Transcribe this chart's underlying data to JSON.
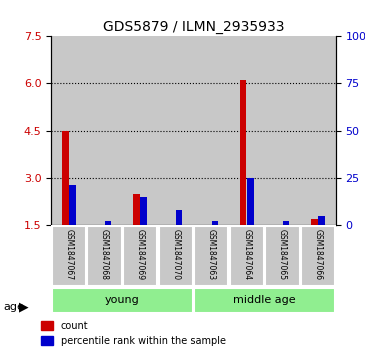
{
  "title": "GDS5879 / ILMN_2935933",
  "samples": [
    "GSM1847067",
    "GSM1847068",
    "GSM1847069",
    "GSM1847070",
    "GSM1847063",
    "GSM1847064",
    "GSM1847065",
    "GSM1847066"
  ],
  "red_values": [
    4.5,
    1.5,
    2.5,
    1.5,
    1.5,
    6.1,
    1.5,
    1.7
  ],
  "blue_values": [
    21,
    2,
    15,
    8,
    2,
    25,
    2,
    5
  ],
  "ylim_left": [
    1.5,
    7.5
  ],
  "ylim_right": [
    0,
    100
  ],
  "yticks_left": [
    1.5,
    3.0,
    4.5,
    6.0,
    7.5
  ],
  "yticks_right": [
    0,
    25,
    50,
    75,
    100
  ],
  "red_color": "#cc0000",
  "blue_color": "#0000cc",
  "bar_bg_color": "#c8c8c8",
  "group_bg_color": "#90EE90",
  "age_label": "age",
  "legend_red": "count",
  "legend_blue": "percentile rank within the sample",
  "group_spans": [
    {
      "start": 0,
      "end": 3,
      "label": "young"
    },
    {
      "start": 4,
      "end": 7,
      "label": "middle age"
    }
  ],
  "grid_yticks": [
    3.0,
    4.5,
    6.0
  ]
}
